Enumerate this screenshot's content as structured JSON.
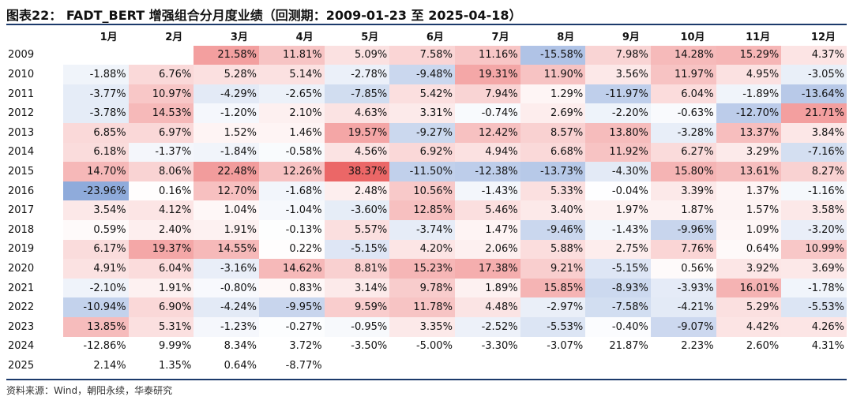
{
  "header": {
    "title": "图表22： FADT_BERT 增强组合分月度业绩（回测期：2009-01-23 至 2025-04-18）",
    "source": "资料来源：Wind，朝阳永续，华泰研究"
  },
  "colors": {
    "positive": "#e84c4c",
    "negative": "#3f6fc2",
    "rule": "#1c3a6b"
  },
  "chart_data": {
    "type": "heatmap",
    "title": "图表22： FADT_BERT 增强组合分月度业绩（回测期：2009-01-23 至 2025-04-18）",
    "columns": [
      "1月",
      "2月",
      "3月",
      "4月",
      "5月",
      "6月",
      "7月",
      "8月",
      "9月",
      "10月",
      "11月",
      "12月"
    ],
    "rows": [
      "2009",
      "2010",
      "2011",
      "2012",
      "2013",
      "2014",
      "2015",
      "2016",
      "2017",
      "2018",
      "2019",
      "2020",
      "2021",
      "2022",
      "2023",
      "2024",
      "2025"
    ],
    "unit": "%",
    "values": [
      [
        null,
        null,
        21.58,
        11.81,
        5.09,
        7.58,
        11.16,
        -15.58,
        7.98,
        14.28,
        15.29,
        4.37
      ],
      [
        -1.88,
        6.76,
        5.28,
        5.14,
        -2.78,
        -9.48,
        19.31,
        11.9,
        3.56,
        11.97,
        4.95,
        -3.05
      ],
      [
        -3.77,
        10.97,
        -4.29,
        -2.65,
        -7.85,
        5.42,
        7.94,
        1.29,
        -11.97,
        6.04,
        -1.89,
        -13.64
      ],
      [
        -3.78,
        14.53,
        -1.2,
        2.1,
        4.63,
        3.31,
        -0.74,
        2.69,
        -2.2,
        -0.63,
        -12.7,
        21.71
      ],
      [
        6.85,
        6.97,
        1.52,
        1.46,
        19.57,
        -9.27,
        12.42,
        8.57,
        13.8,
        -3.28,
        13.37,
        3.84
      ],
      [
        6.18,
        -1.37,
        -1.84,
        -0.58,
        4.56,
        6.92,
        4.94,
        6.68,
        11.92,
        6.27,
        3.29,
        -7.16
      ],
      [
        14.7,
        8.06,
        22.48,
        12.26,
        38.37,
        -11.5,
        -12.38,
        -13.73,
        -4.3,
        15.8,
        13.61,
        8.27
      ],
      [
        -23.96,
        0.16,
        12.7,
        -1.68,
        2.48,
        10.56,
        -1.43,
        5.33,
        -0.04,
        3.39,
        1.37,
        -1.16
      ],
      [
        3.54,
        4.12,
        1.04,
        -1.04,
        -3.6,
        12.85,
        5.46,
        3.4,
        1.97,
        1.87,
        1.57,
        3.58
      ],
      [
        0.59,
        2.4,
        1.91,
        -0.13,
        5.57,
        -3.74,
        1.47,
        -9.46,
        -1.43,
        -9.96,
        1.09,
        -3.2
      ],
      [
        6.17,
        19.37,
        14.55,
        0.22,
        -5.15,
        4.2,
        2.06,
        5.88,
        2.75,
        7.76,
        0.64,
        10.99
      ],
      [
        4.91,
        6.04,
        -3.16,
        14.62,
        8.81,
        15.23,
        17.38,
        9.21,
        -5.15,
        0.56,
        3.92,
        3.69
      ],
      [
        -2.1,
        1.91,
        -0.8,
        0.83,
        3.14,
        9.78,
        1.89,
        15.85,
        -8.93,
        -3.93,
        16.01,
        -1.78
      ],
      [
        -10.94,
        6.9,
        -4.24,
        -9.95,
        9.59,
        11.78,
        4.48,
        -2.97,
        -7.58,
        -4.21,
        5.29,
        -5.53
      ],
      [
        13.85,
        5.31,
        -1.23,
        -0.27,
        -0.95,
        3.35,
        -2.52,
        -5.53,
        -0.4,
        -9.07,
        4.42,
        4.26
      ],
      [
        -12.86,
        9.99,
        8.34,
        3.72,
        -3.5,
        -5.0,
        -3.3,
        -3.07,
        21.87,
        2.23,
        2.6,
        4.31
      ],
      [
        2.14,
        1.35,
        0.64,
        -8.77,
        null,
        null,
        null,
        null,
        null,
        null,
        null,
        null
      ]
    ],
    "colored_rows": [
      "2009",
      "2010",
      "2011",
      "2012",
      "2013",
      "2014",
      "2015",
      "2016",
      "2017",
      "2018",
      "2019",
      "2020",
      "2021",
      "2022",
      "2023"
    ]
  }
}
